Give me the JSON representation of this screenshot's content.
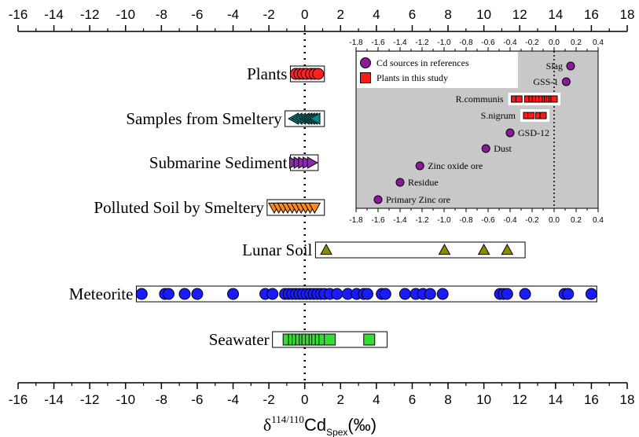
{
  "chart_data": [
    {
      "type": "scatter",
      "xlim": [
        -16,
        18
      ],
      "xticks": [
        "-16",
        "-14",
        "-12",
        "-10",
        "-8",
        "-6",
        "-4",
        "-2",
        "0",
        "2",
        "4",
        "6",
        "8",
        "10",
        "12",
        "14",
        "16",
        "18"
      ],
      "xlabel": {
        "prefix": "δ",
        "sup": "114/110",
        "main": "Cd",
        "sub": "Spex",
        "suffix": "(‰)"
      },
      "categories": [
        {
          "name": "Plants",
          "marker": "circle",
          "color": "#ff2020",
          "box": [
            -0.8,
            1.1
          ],
          "values": [
            -0.5,
            -0.3,
            -0.1,
            0.1,
            0.35,
            0.55,
            0.75
          ]
        },
        {
          "name": "Samples from Smeltery",
          "marker": "triangle-left",
          "color": "#008b8b",
          "box": [
            -1.1,
            1.1
          ],
          "values": [
            -0.6,
            -0.4,
            -0.2,
            0.0,
            0.15,
            0.3,
            0.45,
            0.6
          ]
        },
        {
          "name": "Submarine Sediment",
          "marker": "triangle-right",
          "color": "#8b2bab",
          "box": [
            -0.8,
            0.75
          ],
          "values": [
            -0.6,
            -0.35,
            -0.1,
            0.15,
            0.4
          ]
        },
        {
          "name": "Polluted Soil by Smeltery",
          "marker": "triangle-down",
          "color": "#ff8c1a",
          "box": [
            -2.1,
            1.1
          ],
          "values": [
            -1.7,
            -1.45,
            -1.2,
            -0.95,
            -0.7,
            -0.45,
            -0.2,
            0.05,
            0.3,
            0.55
          ]
        },
        {
          "name": "Lunar Soil",
          "marker": "triangle-up",
          "color": "#8b8b00",
          "box": [
            0.6,
            12.3
          ],
          "values": [
            1.2,
            7.8,
            10.0,
            11.3
          ]
        },
        {
          "name": "Meteorite",
          "marker": "circle",
          "color": "#1a1aff",
          "box": [
            -9.4,
            16.3
          ],
          "values": [
            -9.1,
            -7.8,
            -7.6,
            -6.7,
            -6.0,
            -4.0,
            -2.2,
            -1.8,
            -1.1,
            -0.9,
            -0.7,
            -0.5,
            -0.3,
            -0.1,
            0.1,
            0.3,
            0.5,
            0.7,
            0.9,
            1.1,
            1.4,
            1.8,
            2.4,
            2.9,
            3.3,
            3.5,
            4.3,
            4.5,
            5.6,
            6.2,
            6.6,
            7.0,
            7.7,
            10.9,
            11.1,
            11.3,
            12.3,
            14.5,
            14.7,
            16.0
          ]
        },
        {
          "name": "Seawater",
          "marker": "square",
          "color": "#33dd33",
          "box": [
            -1.8,
            4.6
          ],
          "values": [
            -0.9,
            -0.6,
            -0.4,
            -0.2,
            0.0,
            0.15,
            0.35,
            0.55,
            0.7,
            0.9,
            1.1,
            1.4,
            3.6
          ]
        }
      ]
    },
    {
      "type": "scatter",
      "xlim": [
        -1.8,
        0.4
      ],
      "xticks": [
        "-1.8",
        "-1.6",
        "-1.4",
        "-1.2",
        "-1.0",
        "-0.8",
        "-0.6",
        "-0.4",
        "-0.2",
        "0.0",
        "0.2",
        "0.4"
      ],
      "legend": [
        {
          "name": "Cd sources in references",
          "marker": "circle",
          "color": "#8b1a9b"
        },
        {
          "name": "Plants in this study",
          "marker": "square",
          "color": "#ff1a1a"
        }
      ],
      "points": [
        {
          "label": "Slag",
          "x": 0.15
        },
        {
          "label": "GSS-1",
          "x": 0.11
        },
        {
          "label": "GSD-12",
          "x": -0.4
        },
        {
          "label": "Dust",
          "x": -0.62
        },
        {
          "label": "Zinc oxide ore",
          "x": -1.22
        },
        {
          "label": "Residue",
          "x": -1.4
        },
        {
          "label": "Primary Zinc ore",
          "x": -1.6
        }
      ],
      "plant_series": [
        {
          "label": "R.communis",
          "values": [
            -0.36,
            -0.32,
            -0.24,
            -0.2,
            -0.17,
            -0.14,
            -0.11,
            -0.08,
            -0.06,
            -0.04,
            -0.02,
            0.0
          ]
        },
        {
          "label": "S.nigrum",
          "values": [
            -0.25,
            -0.21,
            -0.14,
            -0.1
          ]
        }
      ]
    }
  ]
}
